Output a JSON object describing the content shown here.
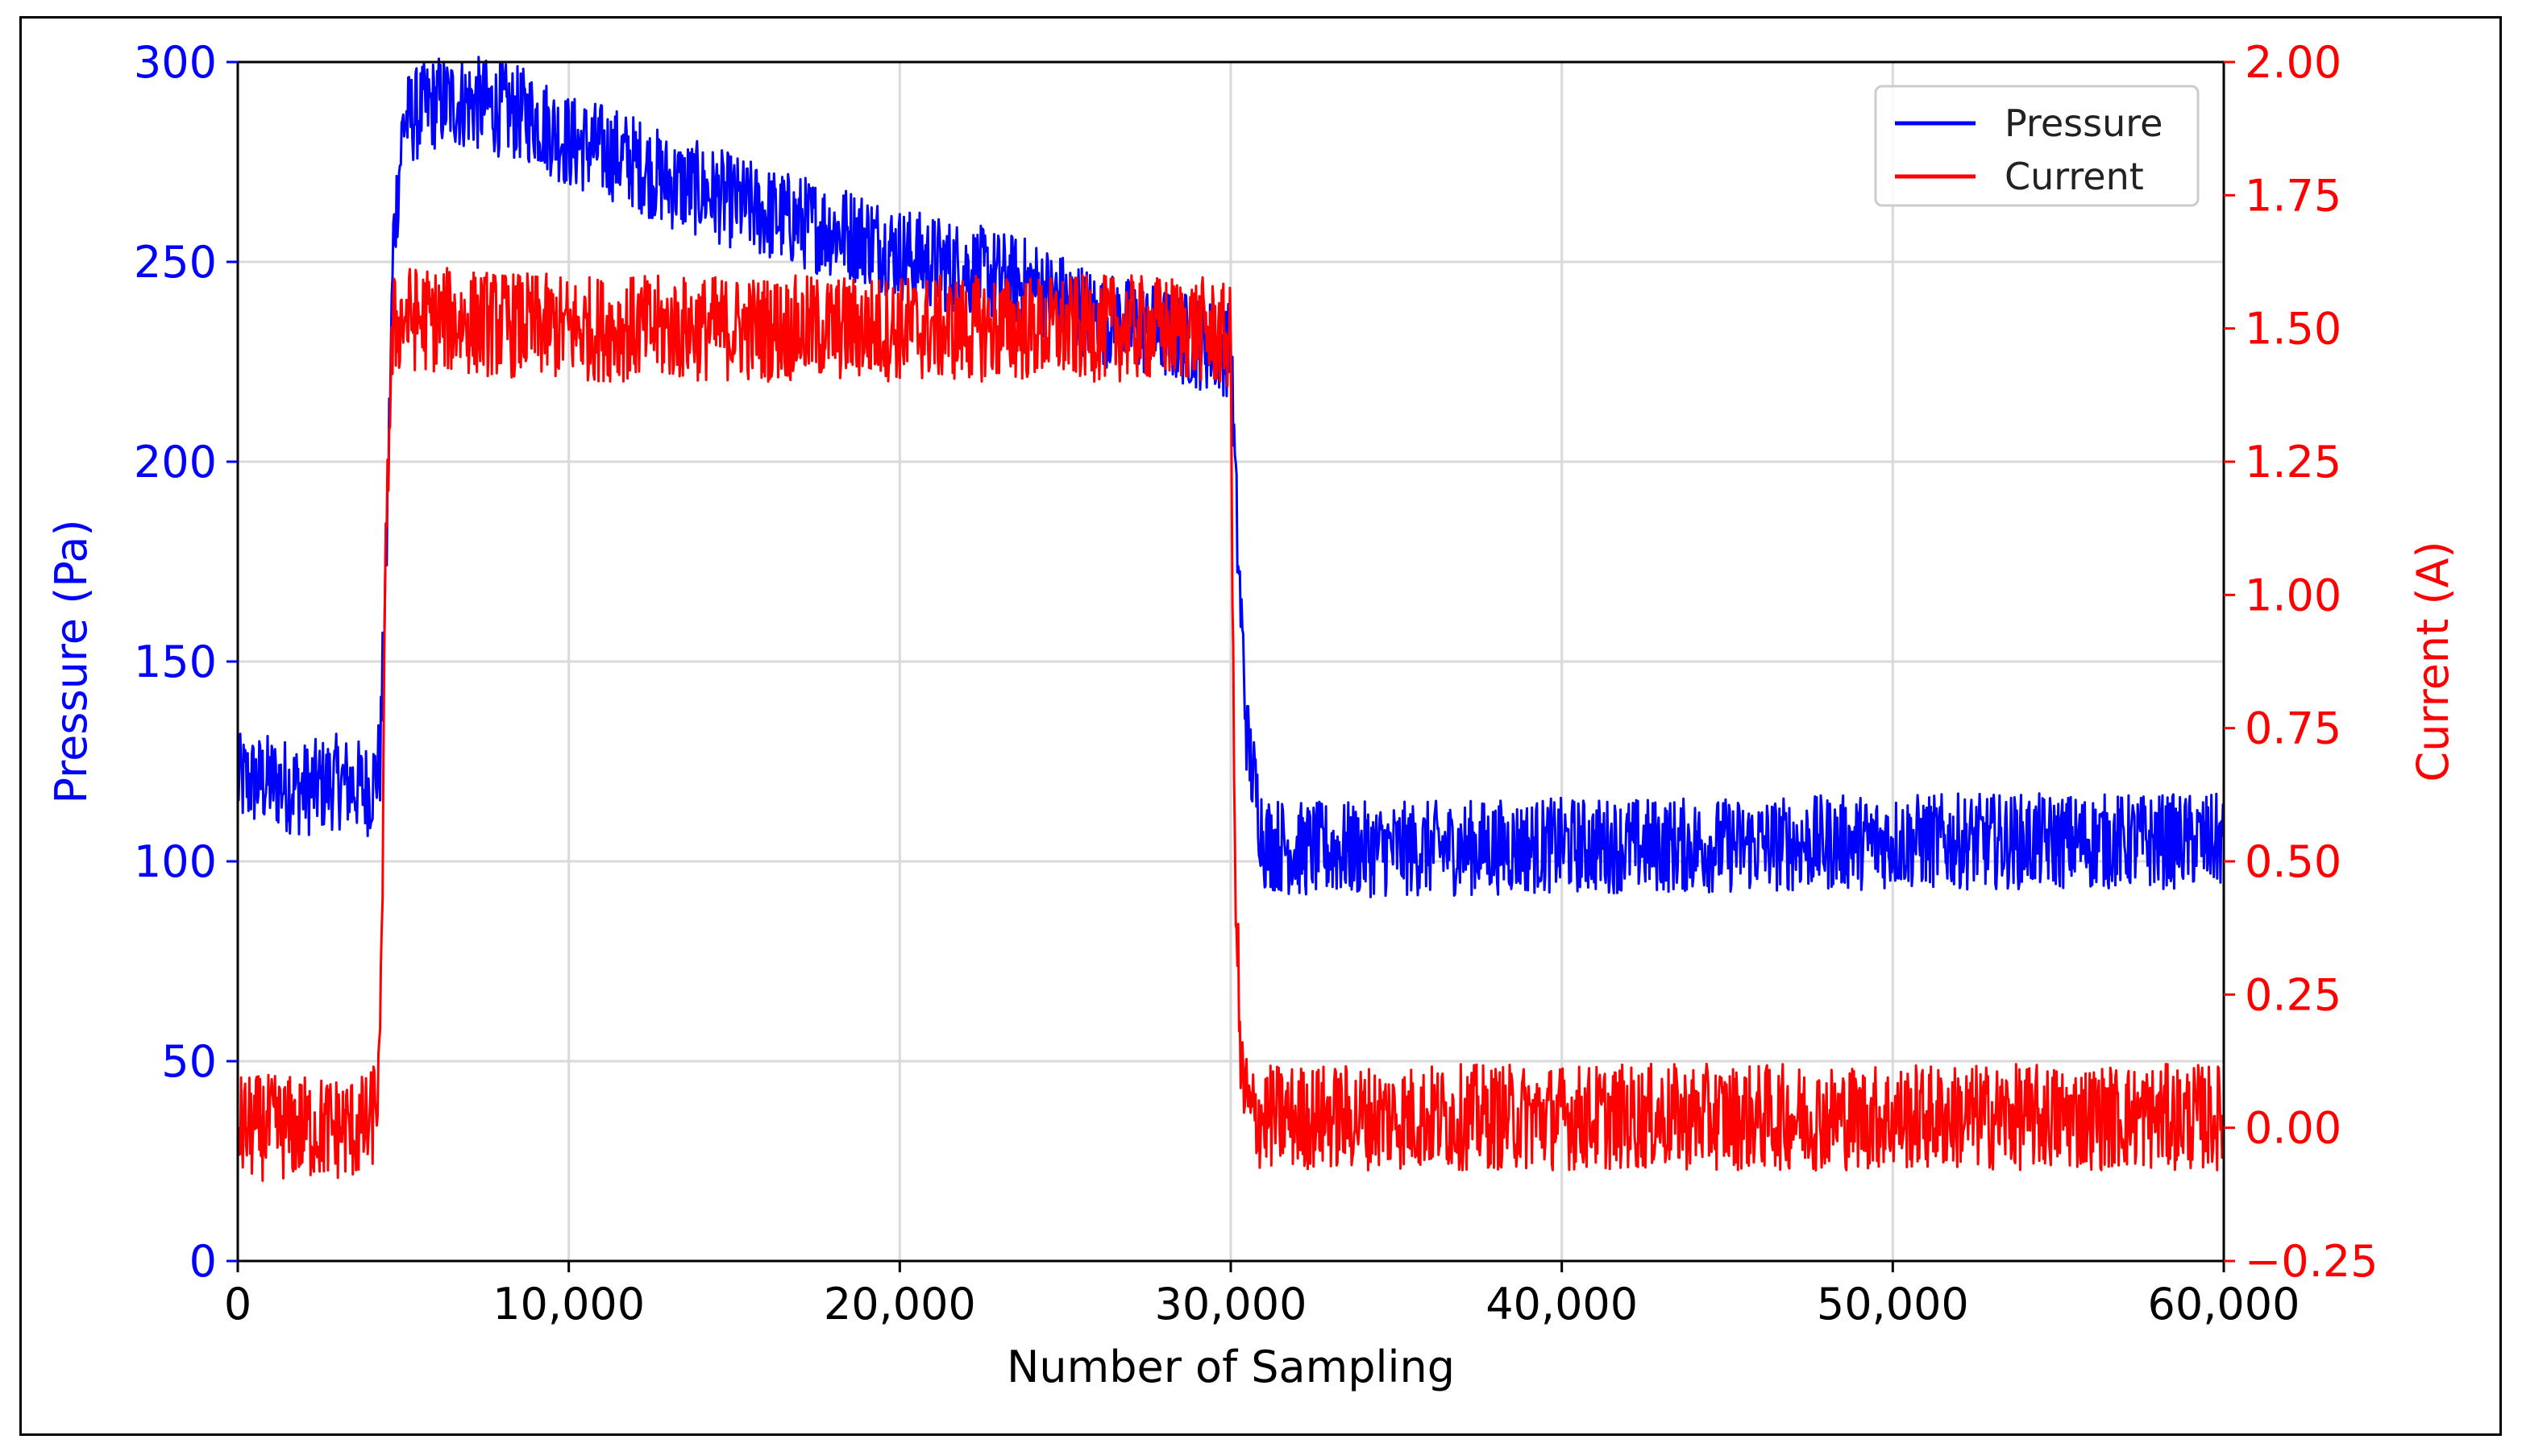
{
  "chart_data": {
    "type": "line",
    "title": "",
    "xlabel": "Number of Sampling",
    "ylabel": "Pressure (Pa)",
    "y2label": "Current (A)",
    "xlim": [
      0,
      60000
    ],
    "ylim": [
      0,
      300
    ],
    "y2lim": [
      -0.25,
      2.0
    ],
    "xticks": [
      0,
      10000,
      20000,
      30000,
      40000,
      50000,
      60000
    ],
    "xtick_labels": [
      "0",
      "10,000",
      "20,000",
      "30,000",
      "40,000",
      "50,000",
      "60,000"
    ],
    "yticks": [
      0,
      50,
      100,
      150,
      200,
      250,
      300
    ],
    "ytick_labels": [
      "0",
      "50",
      "100",
      "150",
      "200",
      "250",
      "300"
    ],
    "y2ticks": [
      -0.25,
      0.0,
      0.25,
      0.5,
      0.75,
      1.0,
      1.25,
      1.5,
      1.75,
      2.0
    ],
    "y2tick_labels": [
      "−0.25",
      "0.00",
      "0.25",
      "0.50",
      "0.75",
      "1.00",
      "1.25",
      "1.50",
      "1.75",
      "2.00"
    ],
    "grid": true,
    "legend_position": "top-right",
    "series": [
      {
        "name": "Pressure",
        "axis": "left",
        "color": "#0000ff",
        "x": [
          0,
          1000,
          2000,
          3000,
          4000,
          4300,
          4500,
          4700,
          5000,
          6000,
          7000,
          8000,
          9000,
          10000,
          11000,
          12000,
          13000,
          14000,
          15000,
          16000,
          17000,
          18000,
          19000,
          20000,
          21000,
          22000,
          23000,
          24000,
          25000,
          26000,
          27000,
          28000,
          29000,
          30000,
          30200,
          30500,
          31000,
          32000,
          35000,
          40000,
          45000,
          50000,
          55000,
          60000
        ],
        "y": [
          120,
          120,
          118,
          120,
          118,
          125,
          180,
          255,
          285,
          290,
          290,
          288,
          286,
          280,
          278,
          275,
          270,
          268,
          265,
          262,
          260,
          258,
          256,
          252,
          250,
          248,
          246,
          244,
          240,
          236,
          234,
          232,
          230,
          228,
          180,
          130,
          105,
          103,
          103,
          104,
          104,
          105,
          105,
          105
        ],
        "noise_band": 12
      },
      {
        "name": "Current",
        "axis": "right",
        "color": "#ff0000",
        "x": [
          0,
          1000,
          2000,
          3000,
          4000,
          4300,
          4500,
          4700,
          5000,
          10000,
          15000,
          20000,
          25000,
          28000,
          29000,
          30000,
          30100,
          30300,
          30600,
          31000,
          35000,
          40000,
          45000,
          50000,
          55000,
          60000
        ],
        "y": [
          0.0,
          0.0,
          0.0,
          0.0,
          0.0,
          0.1,
          1.2,
          1.5,
          1.52,
          1.5,
          1.5,
          1.5,
          1.5,
          1.5,
          1.5,
          1.48,
          0.6,
          0.1,
          0.02,
          0.02,
          0.02,
          0.02,
          0.02,
          0.02,
          0.02,
          0.02
        ],
        "noise_band": 0.1
      }
    ]
  }
}
